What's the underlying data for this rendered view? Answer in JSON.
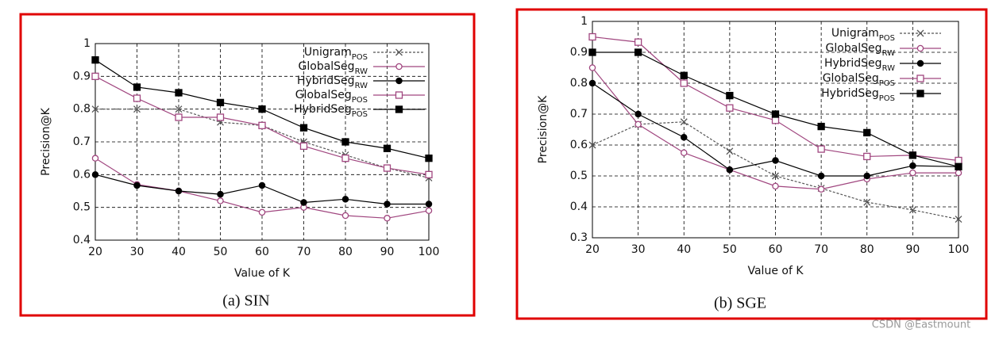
{
  "chart_data": [
    {
      "type": "line",
      "caption": "(a) SIN",
      "xlabel": "Value of K",
      "ylabel": "Precision@K",
      "x": [
        20,
        30,
        40,
        50,
        60,
        70,
        80,
        90,
        100
      ],
      "xlim": [
        20,
        100
      ],
      "xticks": [
        20,
        30,
        40,
        50,
        60,
        70,
        80,
        90,
        100
      ],
      "ylim": [
        0.4,
        1
      ],
      "yticks": [
        0.4,
        0.5,
        0.6,
        0.7,
        0.8,
        0.9,
        1
      ],
      "grid": true,
      "legend": "upper right",
      "series": [
        {
          "name": "Unigram",
          "subscript": "POS",
          "color": "#555555",
          "marker": "cross",
          "dashed": true,
          "values": [
            0.8,
            0.8,
            0.8,
            0.76,
            0.75,
            0.7,
            0.66,
            0.62,
            0.59
          ]
        },
        {
          "name": "GlobalSeg",
          "subscript": "RW",
          "color": "#a0467f",
          "marker": "open-circle",
          "dashed": false,
          "values": [
            0.65,
            0.57,
            0.55,
            0.52,
            0.485,
            0.5,
            0.475,
            0.467,
            0.49
          ]
        },
        {
          "name": "HybridSeg",
          "subscript": "RW",
          "color": "#000000",
          "marker": "filled-circle",
          "dashed": false,
          "values": [
            0.6,
            0.567,
            0.55,
            0.54,
            0.567,
            0.515,
            0.525,
            0.51,
            0.51
          ]
        },
        {
          "name": "GlobalSeg",
          "subscript": "POS",
          "color": "#a0467f",
          "marker": "open-square",
          "dashed": false,
          "values": [
            0.9,
            0.833,
            0.775,
            0.775,
            0.75,
            0.687,
            0.65,
            0.62,
            0.6
          ]
        },
        {
          "name": "HybridSeg",
          "subscript": "POS",
          "color": "#000000",
          "marker": "filled-square",
          "dashed": false,
          "values": [
            0.95,
            0.867,
            0.85,
            0.82,
            0.8,
            0.743,
            0.7,
            0.68,
            0.65
          ]
        }
      ]
    },
    {
      "type": "line",
      "caption": "(b) SGE",
      "xlabel": "Value of K",
      "ylabel": "Precision@K",
      "x": [
        20,
        30,
        40,
        50,
        60,
        70,
        80,
        90,
        100
      ],
      "xlim": [
        20,
        100
      ],
      "xticks": [
        20,
        30,
        40,
        50,
        60,
        70,
        80,
        90,
        100
      ],
      "ylim": [
        0.3,
        1
      ],
      "yticks": [
        0.3,
        0.4,
        0.5,
        0.6,
        0.7,
        0.8,
        0.9,
        1
      ],
      "grid": true,
      "legend": "upper right",
      "series": [
        {
          "name": "Unigram",
          "subscript": "POS",
          "color": "#555555",
          "marker": "cross",
          "dashed": true,
          "values": [
            0.6,
            0.667,
            0.675,
            0.58,
            0.5,
            0.46,
            0.415,
            0.39,
            0.36
          ]
        },
        {
          "name": "GlobalSeg",
          "subscript": "RW",
          "color": "#a0467f",
          "marker": "open-circle",
          "dashed": false,
          "values": [
            0.85,
            0.667,
            0.575,
            0.52,
            0.467,
            0.457,
            0.49,
            0.51,
            0.51
          ]
        },
        {
          "name": "HybridSeg",
          "subscript": "RW",
          "color": "#000000",
          "marker": "filled-circle",
          "dashed": false,
          "values": [
            0.8,
            0.7,
            0.625,
            0.52,
            0.55,
            0.5,
            0.5,
            0.533,
            0.53
          ]
        },
        {
          "name": "GlobalSeg",
          "subscript": "POS",
          "color": "#a0467f",
          "marker": "open-square",
          "dashed": false,
          "values": [
            0.95,
            0.933,
            0.8,
            0.72,
            0.68,
            0.587,
            0.563,
            0.567,
            0.55
          ]
        },
        {
          "name": "HybridSeg",
          "subscript": "POS",
          "color": "#000000",
          "marker": "filled-square",
          "dashed": false,
          "values": [
            0.9,
            0.9,
            0.825,
            0.76,
            0.7,
            0.66,
            0.64,
            0.567,
            0.53
          ]
        }
      ]
    }
  ],
  "watermark": "CSDN @Eastmount"
}
